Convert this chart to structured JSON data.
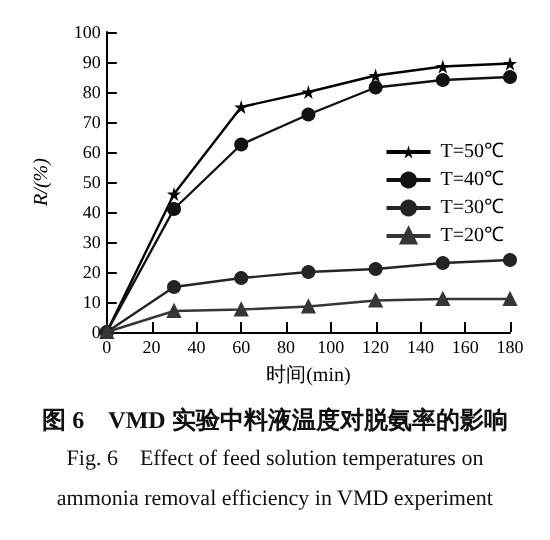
{
  "chart_data": {
    "type": "line",
    "xlabel": "时间(min)",
    "ylabel": "R/(%)",
    "x": [
      0,
      30,
      60,
      90,
      120,
      150,
      180
    ],
    "xlim": [
      0,
      180
    ],
    "xticks": [
      0,
      20,
      40,
      60,
      80,
      100,
      120,
      140,
      160,
      180
    ],
    "ylim": [
      0,
      100
    ],
    "yticks": [
      0,
      10,
      20,
      30,
      40,
      50,
      60,
      70,
      80,
      90,
      100
    ],
    "grid": false,
    "legend": "right",
    "line_style": "solid",
    "series": [
      {
        "name": "T=50℃",
        "color": "#000000",
        "marker": "star",
        "values": [
          0,
          46,
          75,
          80,
          85.5,
          88.5,
          89.5
        ]
      },
      {
        "name": "T=40℃",
        "color": "#121212",
        "marker": "circle",
        "values": [
          0,
          41,
          62.5,
          72.5,
          81.5,
          84,
          85
        ]
      },
      {
        "name": "T=30℃",
        "color": "#242424",
        "marker": "circle",
        "values": [
          0,
          15,
          18,
          20,
          21,
          23,
          24
        ]
      },
      {
        "name": "T=20℃",
        "color": "#363636",
        "marker": "triangle",
        "values": [
          0,
          7,
          7.5,
          8.5,
          10.5,
          11,
          11
        ]
      }
    ],
    "annotations": [
      "图 6　VMD 实验中料液温度对脱氨率的影响",
      "Fig. 6　Effect of feed solution temperatures on",
      "ammonia removal efficiency in VMD experiment"
    ]
  }
}
